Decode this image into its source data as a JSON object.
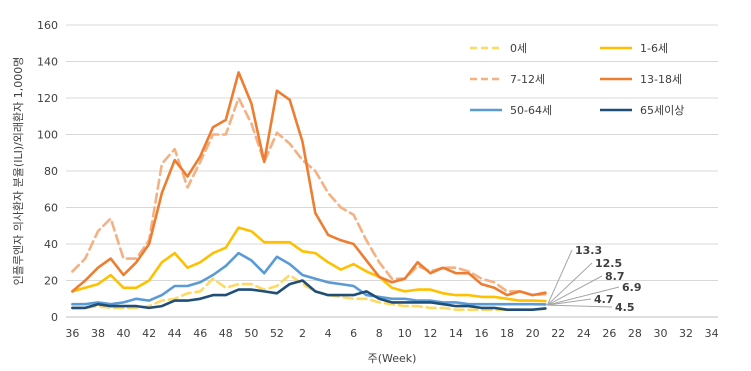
{
  "chart_data": {
    "type": "line",
    "xlabel": "주(Week)",
    "ylabel": "인플루엔자 의사환자 분율(ILI)/외래환자 1,000명",
    "ylim": [
      0,
      160
    ],
    "yticks": [
      "0",
      "20",
      "40",
      "60",
      "80",
      "100",
      "120",
      "140",
      "160"
    ],
    "xticks": [
      "36",
      "38",
      "40",
      "42",
      "44",
      "46",
      "48",
      "50",
      "52",
      "2",
      "4",
      "6",
      "8",
      "10",
      "12",
      "14",
      "16",
      "18",
      "20",
      "22",
      "24",
      "26",
      "28",
      "30",
      "32",
      "34"
    ],
    "legend_position": "top-right",
    "end_labels": [
      "13.3",
      "12.5",
      "8.7",
      "6.9",
      "4.7",
      "4.5"
    ],
    "series": [
      {
        "name": "0세",
        "color": "#ffd966",
        "dash": "dashed",
        "values": [
          5,
          5,
          6,
          5,
          5,
          5,
          6,
          9,
          10,
          13,
          14,
          21,
          16,
          18,
          18,
          15,
          17,
          23,
          18,
          14,
          12,
          11,
          10,
          10,
          8,
          7,
          6,
          6,
          5,
          5,
          4,
          4,
          4,
          4,
          4,
          4,
          4,
          4.5
        ]
      },
      {
        "name": "1-6세",
        "color": "#ffc000",
        "dash": "solid",
        "values": [
          14,
          16,
          18,
          23,
          16,
          16,
          20,
          30,
          35,
          27,
          30,
          35,
          38,
          49,
          47,
          41,
          41,
          41,
          36,
          35,
          30,
          26,
          29,
          25,
          22,
          16,
          14,
          15,
          15,
          13,
          12,
          12,
          11,
          11,
          10,
          9,
          9,
          8.7
        ]
      },
      {
        "name": "7-12세",
        "color": "#f4b183",
        "dash": "dashed",
        "values": [
          25,
          32,
          47,
          54,
          32,
          32,
          42,
          84,
          92,
          71,
          85,
          100,
          100,
          120,
          106,
          85,
          101,
          95,
          86,
          80,
          68,
          60,
          56,
          42,
          30,
          21,
          21,
          28,
          25,
          27,
          27,
          25,
          21,
          19,
          14,
          14,
          12,
          12.5
        ]
      },
      {
        "name": "13-18세",
        "color": "#ed7d31",
        "dash": "solid",
        "values": [
          14,
          20,
          27,
          32,
          23,
          30,
          40,
          68,
          86,
          77,
          88,
          104,
          108,
          134,
          117,
          85,
          124,
          119,
          96,
          57,
          45,
          42,
          40,
          31,
          22,
          19,
          21,
          30,
          24,
          27,
          24,
          24,
          18,
          16,
          12,
          14,
          12,
          13.3
        ]
      },
      {
        "name": "50-64세",
        "color": "#5b9bd5",
        "dash": "solid",
        "values": [
          7,
          7,
          8,
          7,
          8,
          10,
          9,
          12,
          17,
          17,
          19,
          23,
          28,
          35,
          31,
          24,
          33,
          29,
          23,
          21,
          19,
          18,
          17,
          12,
          11,
          10,
          10,
          9,
          9,
          8,
          8,
          7,
          7,
          7,
          7,
          7,
          7,
          6.9
        ]
      },
      {
        "name": "65세이상",
        "color": "#1f4e79",
        "dash": "solid",
        "values": [
          5,
          5,
          7,
          6,
          6,
          6,
          5,
          6,
          9,
          9,
          10,
          12,
          12,
          15,
          15,
          14,
          13,
          18,
          20,
          14,
          12,
          12,
          12,
          14,
          10,
          8,
          8,
          8,
          8,
          7,
          6,
          6,
          5,
          5,
          4,
          4,
          4,
          4.7
        ]
      }
    ]
  }
}
